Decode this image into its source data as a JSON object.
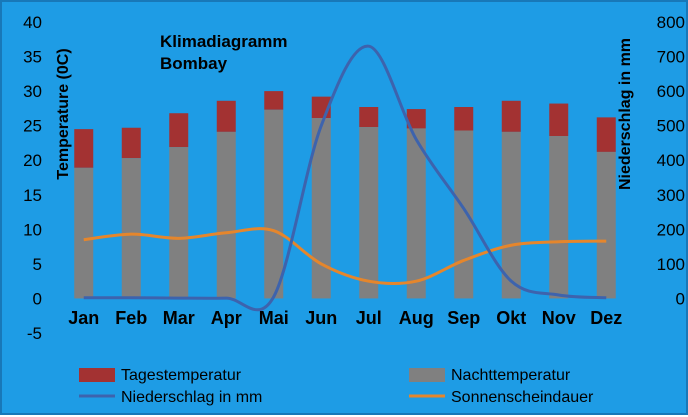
{
  "chart_data": {
    "type": "bar",
    "title_lines": [
      "Klimadiagramm",
      "Bombay"
    ],
    "categories": [
      "Jan",
      "Feb",
      "Mar",
      "Apr",
      "Mai",
      "Jun",
      "Jul",
      "Aug",
      "Sep",
      "Okt",
      "Nov",
      "Dez"
    ],
    "ylabel_left": "Temperature (0C)",
    "ylabel_right": "Niederschlag in mm",
    "ylim_left": [
      -5,
      40
    ],
    "yticks_left": [
      -5,
      0,
      5,
      10,
      15,
      20,
      25,
      30,
      35,
      40
    ],
    "ylim_right": [
      0,
      800
    ],
    "yticks_right": [
      0,
      100,
      200,
      300,
      400,
      500,
      600,
      700,
      800
    ],
    "grid": false,
    "legend_position": "bottom",
    "series": [
      {
        "name": "Tagestemperatur",
        "kind": "bar",
        "axis": "left",
        "color": "#a33232",
        "values": [
          24.5,
          24.7,
          26.8,
          28.6,
          30.0,
          29.2,
          27.7,
          27.4,
          27.7,
          28.6,
          28.2,
          26.2
        ]
      },
      {
        "name": "Nachttemperatur",
        "kind": "bar",
        "axis": "left",
        "color": "#808080",
        "values": [
          18.9,
          20.3,
          21.9,
          24.1,
          27.3,
          26.1,
          24.8,
          24.6,
          24.3,
          24.1,
          23.5,
          21.2
        ]
      },
      {
        "name": "Niederschlag in mm",
        "kind": "line",
        "axis": "right",
        "color": "#3d63ad",
        "values": [
          2,
          2,
          1,
          1,
          5,
          500,
          730,
          460,
          260,
          50,
          10,
          2
        ]
      },
      {
        "name": "Sonnenscheindauer",
        "kind": "line",
        "axis": "left",
        "color": "#e5862c",
        "values": [
          8.5,
          9.3,
          8.7,
          9.5,
          9.8,
          5.0,
          2.5,
          2.5,
          5.5,
          7.7,
          8.2,
          8.3
        ]
      }
    ]
  }
}
